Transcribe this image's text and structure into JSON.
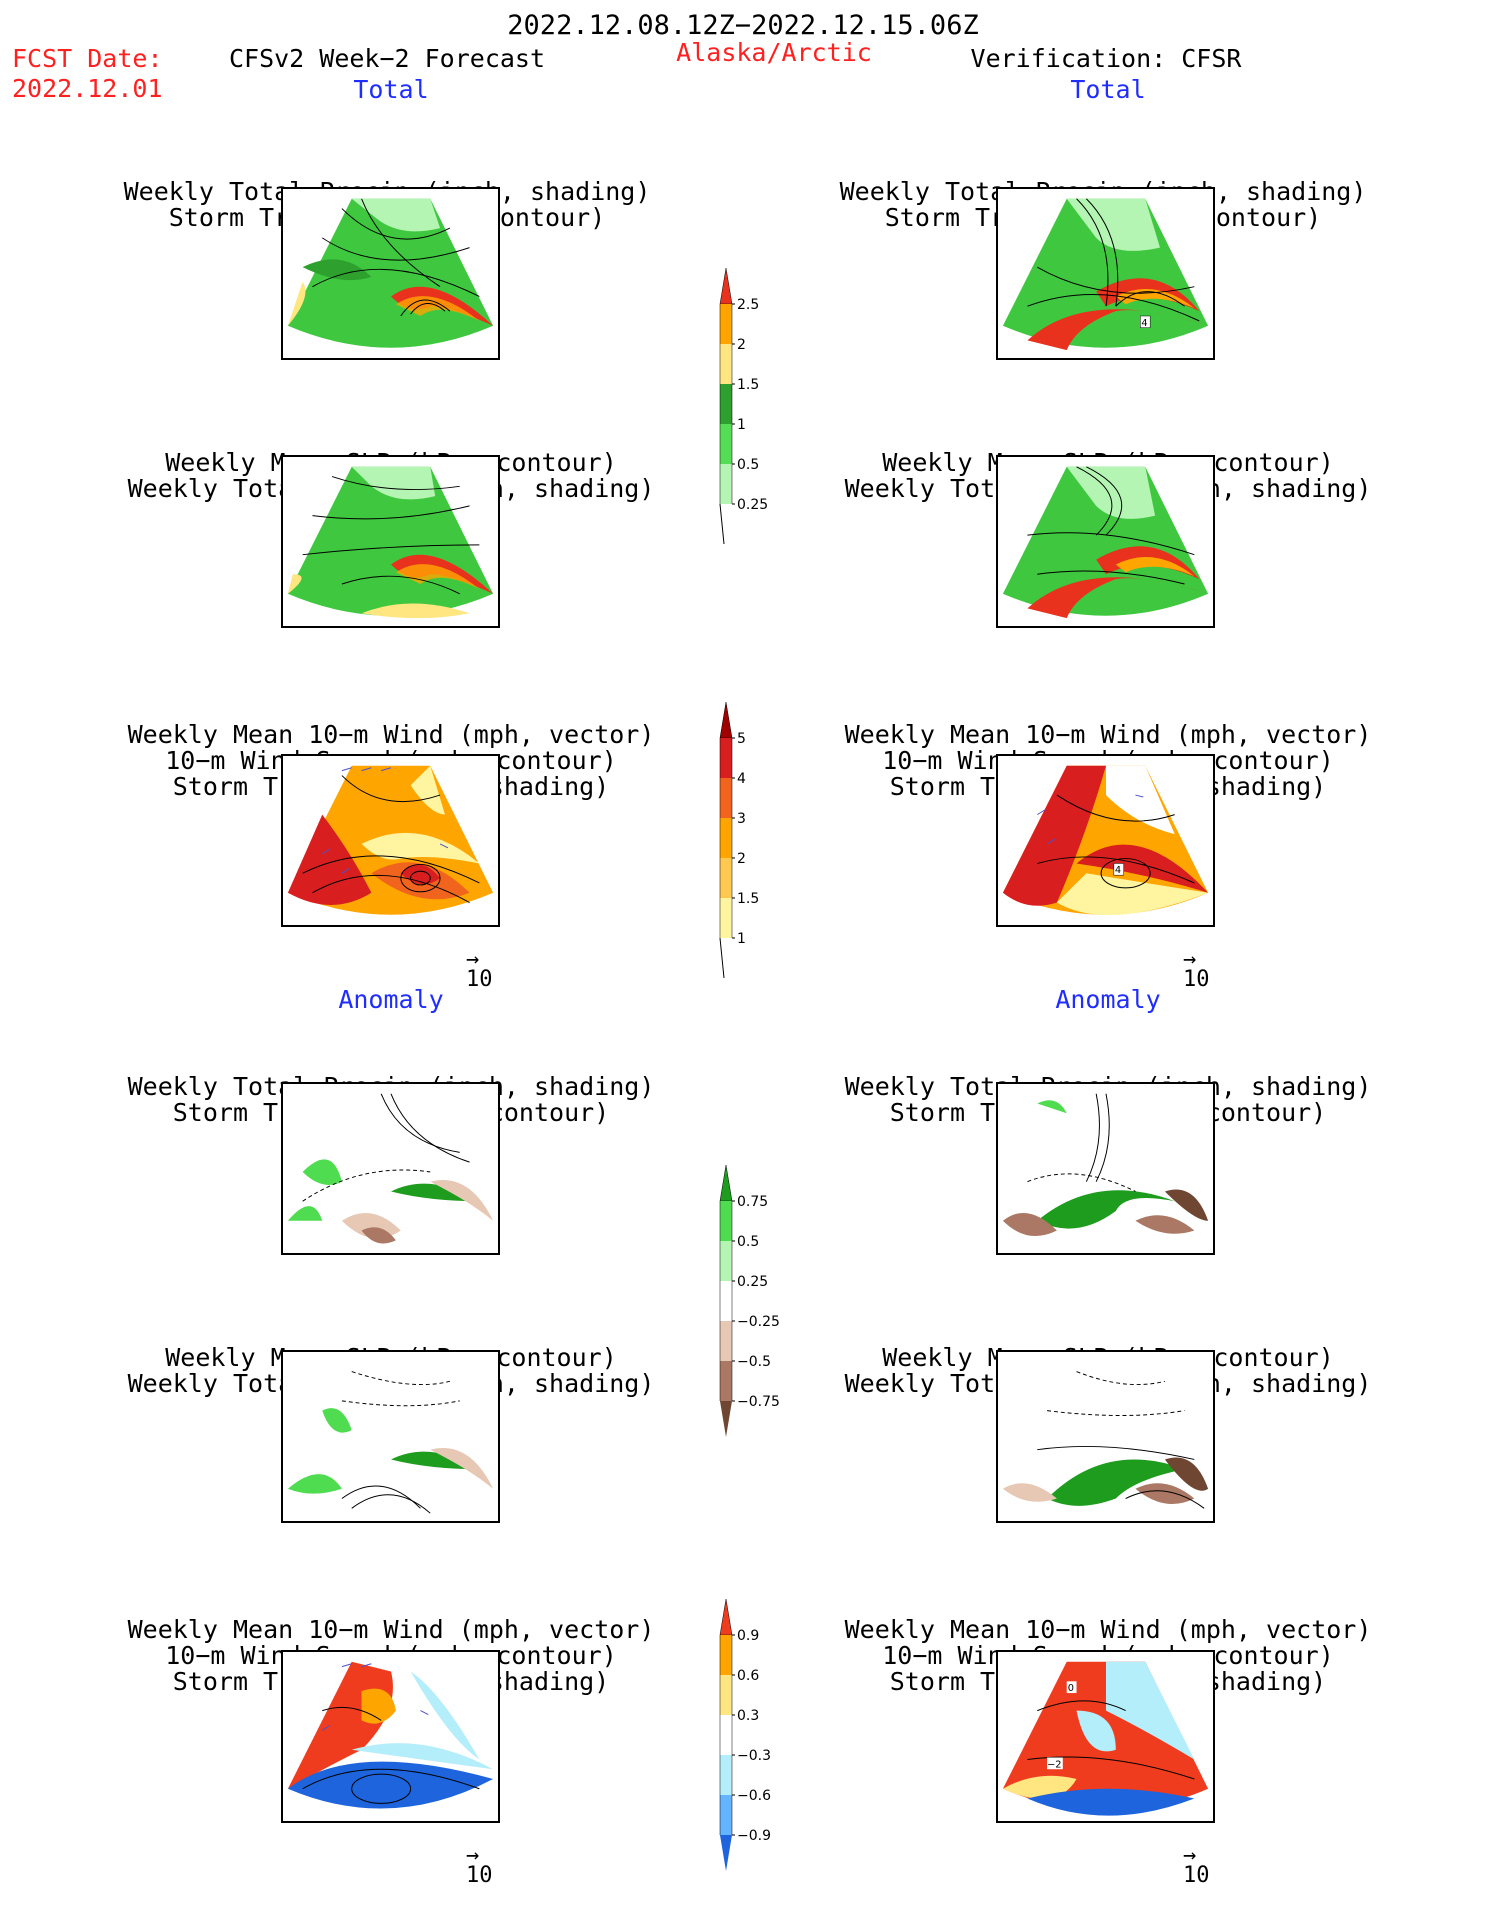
{
  "header": {
    "date_range": "2022.12.08.12Z−2022.12.15.06Z",
    "fcst_date_label": "FCST Date:",
    "fcst_date_value": "2022.12.01",
    "model": "CFSv2 Week−2 Forecast",
    "region": "Alaska/Arctic",
    "verification": "Verification: CFSR"
  },
  "section_labels": {
    "total": "Total",
    "anomaly": "Anomaly"
  },
  "panel_titles": {
    "precip_storm": [
      "Weekly Total Precip (inch, shading)",
      "Storm Track Density (contour)"
    ],
    "slp_precip": [
      "Weekly Mean SLP (hPa, contour)",
      "Weekly Total Precip (inch, shading)"
    ],
    "wind_storm": [
      "Weekly Mean 10−m Wind (mph, vector)",
      "10−m Wind Speed (mph, contour)",
      "Storm Track Density (shading)"
    ]
  },
  "vector_reference": "10",
  "colorbars": {
    "total_precip": {
      "labels": [
        "2.5",
        "2",
        "1.5",
        "1",
        "0.5",
        "0.25"
      ],
      "colors": [
        "#e8321e",
        "#ffa500",
        "#ffe680",
        "#2ea02e",
        "#55dd55",
        "#b4f5b4"
      ]
    },
    "total_storm": {
      "labels": [
        "5",
        "4",
        "3",
        "2",
        "1.5",
        "1"
      ],
      "colors": [
        "#a00000",
        "#d81e1e",
        "#f0641e",
        "#ffa500",
        "#ffc850",
        "#fff5a0"
      ]
    },
    "anom_precip": {
      "labels": [
        "0.75",
        "0.5",
        "0.25",
        "−0.25",
        "−0.5",
        "−0.75"
      ],
      "colors": [
        "#1e9c1e",
        "#50dc50",
        "#b4f5b4",
        "#ffffff",
        "#e6c8b4",
        "#aa7864",
        "#6e4632"
      ]
    },
    "anom_storm": {
      "labels": [
        "0.9",
        "0.6",
        "0.3",
        "−0.3",
        "−0.6",
        "−0.9"
      ],
      "colors": [
        "#f03c1e",
        "#ffa500",
        "#ffe680",
        "#ffffff",
        "#b4eefa",
        "#64b4ff",
        "#1e64dc"
      ]
    }
  }
}
